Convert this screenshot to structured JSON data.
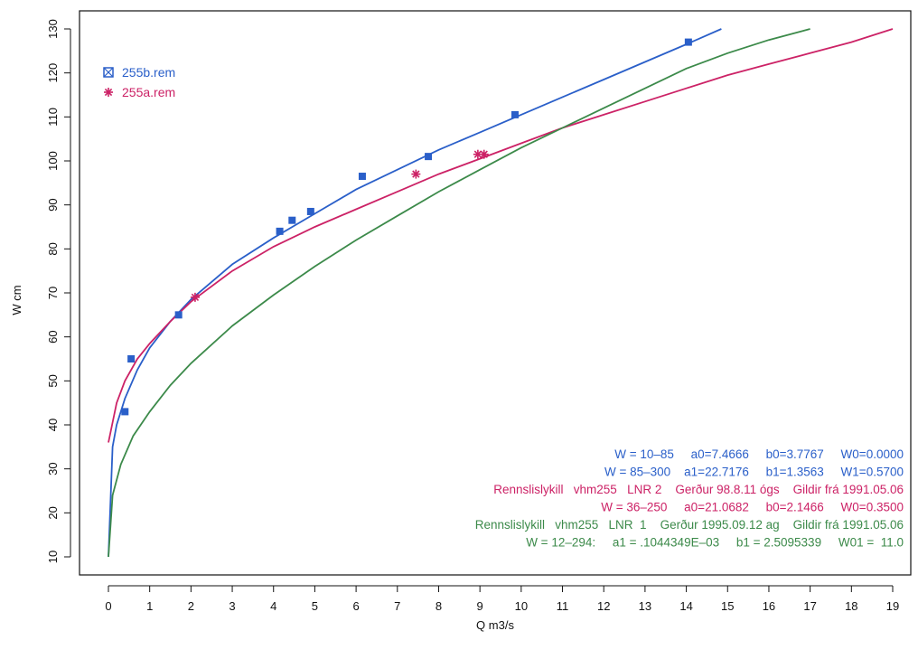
{
  "chart_data": {
    "type": "scatter",
    "title": "",
    "xlabel": "Q m3/s",
    "ylabel": "W cm",
    "xlim": [
      0,
      19
    ],
    "ylim": [
      10,
      130
    ],
    "xticks": [
      "0",
      "1",
      "2",
      "3",
      "4",
      "5",
      "6",
      "7",
      "8",
      "9",
      "10",
      "11",
      "12",
      "13",
      "14",
      "15",
      "16",
      "17",
      "18",
      "19"
    ],
    "yticks": [
      "10",
      "20",
      "30",
      "40",
      "50",
      "60",
      "70",
      "80",
      "90",
      "100",
      "110",
      "120",
      "130"
    ],
    "grid": false,
    "legend_position": "top-left",
    "series": [
      {
        "name": "255b.rem",
        "color": "#2a5fc9",
        "marker": "square",
        "x": [
          0.4,
          0.55,
          1.7,
          4.15,
          4.45,
          4.9,
          6.15,
          7.75,
          9.85,
          14.05
        ],
        "y": [
          43,
          55,
          65,
          84,
          86.5,
          88.5,
          96.5,
          101,
          110.5,
          127
        ]
      },
      {
        "name": "255a.rem",
        "color": "#cc2266",
        "marker": "asterisk",
        "x": [
          2.1,
          7.45,
          8.95,
          9.1
        ],
        "y": [
          69,
          97,
          101.5,
          101.5
        ]
      }
    ],
    "curves": [
      {
        "color": "#2a5fc9",
        "x": [
          0.0,
          0.1,
          0.2,
          0.4,
          0.7,
          1.0,
          1.5,
          2.0,
          3.0,
          4.0,
          5.0,
          6.0,
          7.0,
          8.0,
          9.0,
          10.0,
          11.0,
          12.0,
          13.0,
          14.0,
          14.85
        ],
        "y": [
          10,
          35,
          40,
          46,
          52.5,
          57.5,
          63.5,
          68.5,
          76.5,
          82.5,
          88,
          93.5,
          98,
          102.5,
          106.5,
          110.5,
          114.5,
          118.5,
          122.5,
          126.5,
          130
        ]
      },
      {
        "color": "#cc2266",
        "x": [
          0.0,
          0.2,
          0.4,
          0.7,
          1.0,
          1.5,
          2.0,
          3.0,
          4.0,
          5.0,
          6.0,
          7.0,
          8.0,
          9.0,
          10.0,
          11.0,
          12.0,
          13.0,
          14.0,
          15.0,
          16.0,
          17.0,
          18.0,
          19.0
        ],
        "y": [
          36,
          45,
          50,
          55,
          58.5,
          63.5,
          68,
          75,
          80.5,
          85,
          89,
          93,
          97,
          100.5,
          104,
          107.5,
          110.5,
          113.5,
          116.5,
          119.5,
          122,
          124.5,
          127,
          130
        ]
      },
      {
        "color": "#3c8a4a",
        "x": [
          0.0,
          0.1,
          0.3,
          0.6,
          1.0,
          1.5,
          2.0,
          3.0,
          4.0,
          5.0,
          6.0,
          7.0,
          8.0,
          9.0,
          10.0,
          11.0,
          12.0,
          13.0,
          14.0,
          15.0,
          16.0,
          17.0
        ],
        "y": [
          10,
          24,
          31,
          37.5,
          43,
          49,
          54,
          62.5,
          69.5,
          76,
          82,
          87.5,
          93,
          98,
          103,
          107.5,
          112,
          116.5,
          121,
          124.5,
          127.5,
          130
        ]
      }
    ]
  },
  "annotations": [
    {
      "color": "#2a5fc9",
      "text": "W = 10–85     a0=7.4666     b0=3.7767     W0=0.0000"
    },
    {
      "color": "#2a5fc9",
      "text": "W = 85–300    a1=22.7176     b1=1.3563     W1=0.5700"
    },
    {
      "color": "#cc2266",
      "text": "Rennslislykill   vhm255   LNR 2    Gerður 98.8.11 ógs    Gildir frá 1991.05.06"
    },
    {
      "color": "#cc2266",
      "text": "W = 36–250     a0=21.0682     b0=2.1466     W0=0.3500"
    },
    {
      "color": "#3c8a4a",
      "text": "Rennslislykill   vhm255   LNR  1    Gerður 1995.09.12 ag    Gildir frá 1991.05.06"
    },
    {
      "color": "#3c8a4a",
      "text": "W = 12–294:     a1 = .1044349E–03     b1 = 2.5095339     W01 =  11.0"
    }
  ]
}
